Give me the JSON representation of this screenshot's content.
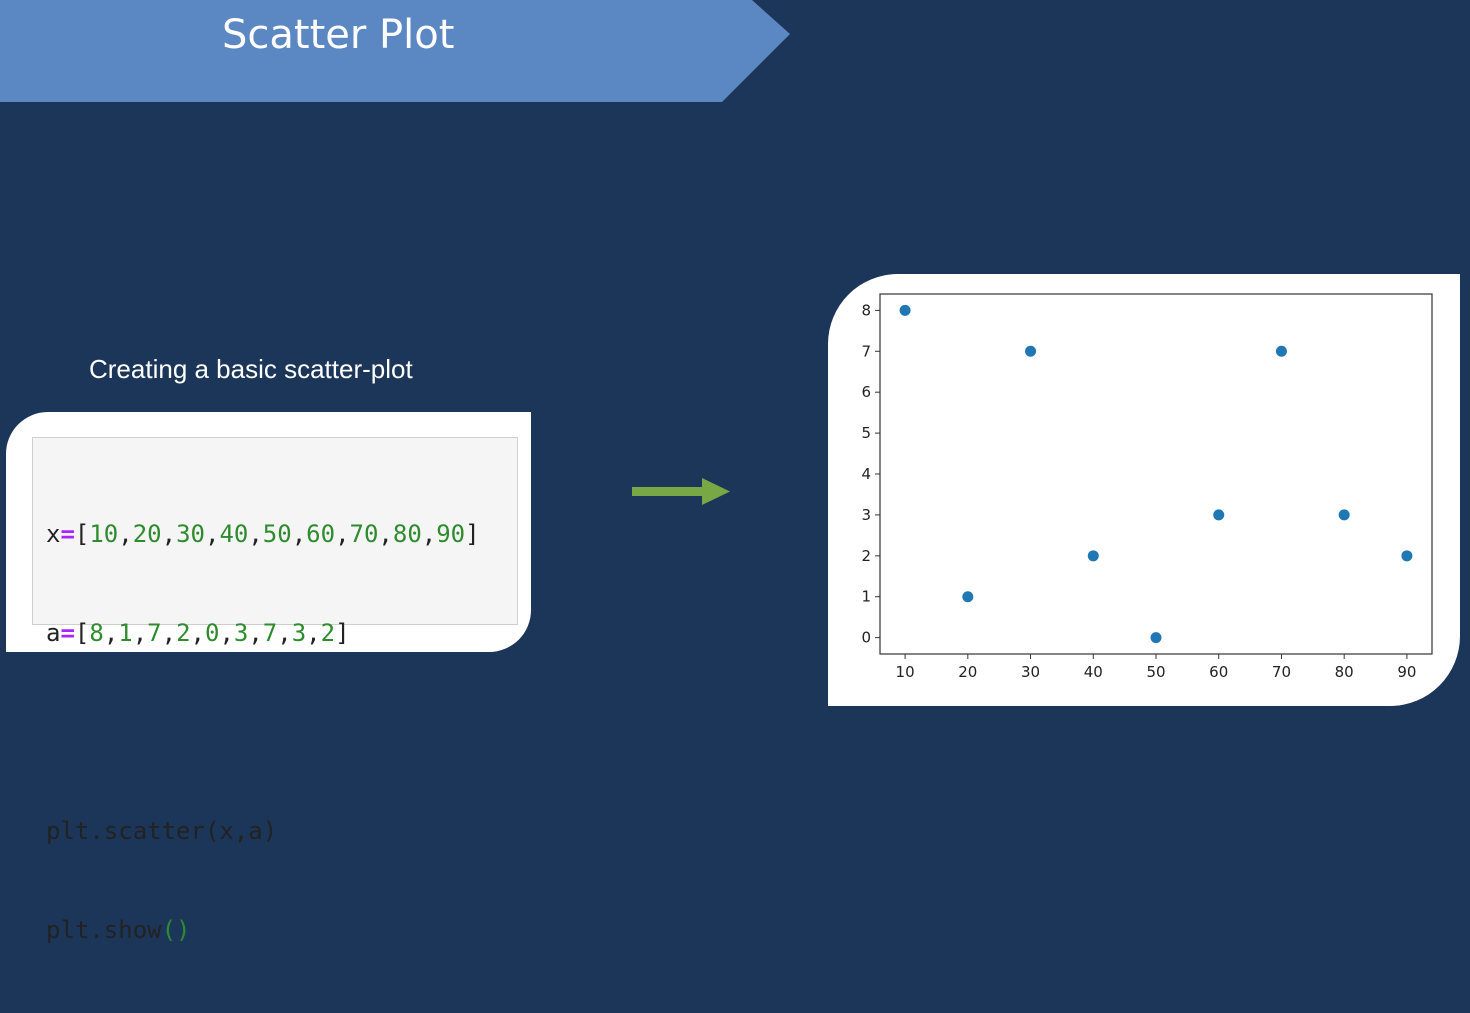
{
  "slide": {
    "title": "Scatter Plot",
    "subtitle": "Creating a basic scatter-plot",
    "banner_color": "#5b87c3",
    "background_color": "#1c365a",
    "arrow_color": "#77a845"
  },
  "code": {
    "line1": {
      "var": "x",
      "eq": "=",
      "open": "[",
      "close": "]",
      "items": [
        "10",
        "20",
        "30",
        "40",
        "50",
        "60",
        "70",
        "80",
        "90"
      ]
    },
    "line2": {
      "var": "a",
      "eq": "=",
      "open": "[",
      "close": "]",
      "items": [
        "8",
        "1",
        "7",
        "2",
        "0",
        "3",
        "7",
        "3",
        "2"
      ]
    },
    "line3": "plt.scatter(x,a)",
    "line4_prefix": "plt.show",
    "line4_parens": "()"
  },
  "chart_data": {
    "type": "scatter",
    "x": [
      10,
      20,
      30,
      40,
      50,
      60,
      70,
      80,
      90
    ],
    "y": [
      8,
      1,
      7,
      2,
      0,
      3,
      7,
      3,
      2
    ],
    "xticks": [
      "10",
      "20",
      "30",
      "40",
      "50",
      "60",
      "70",
      "80",
      "90"
    ],
    "yticks": [
      "0",
      "1",
      "2",
      "3",
      "4",
      "5",
      "6",
      "7",
      "8"
    ],
    "xlim": [
      6,
      94
    ],
    "ylim": [
      -0.4,
      8.4
    ],
    "grid": false,
    "marker_color": "#1f77b4"
  }
}
